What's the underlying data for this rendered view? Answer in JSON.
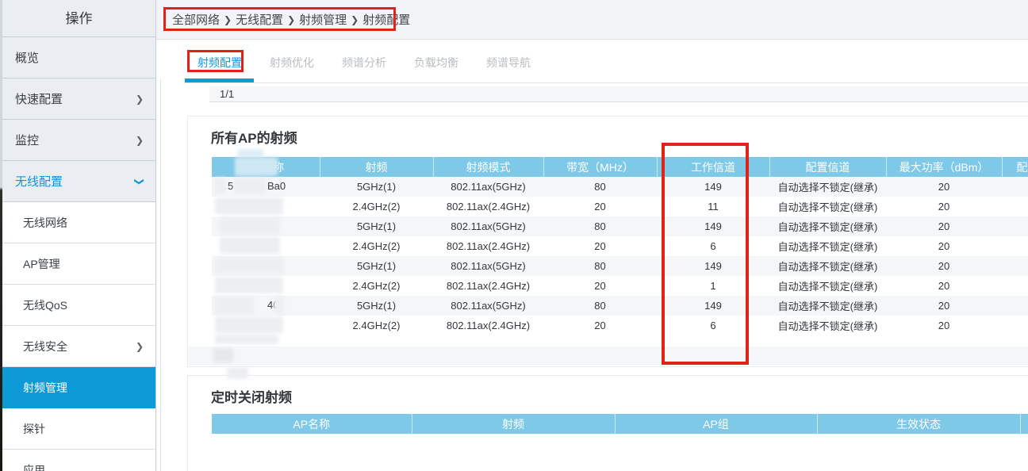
{
  "colors": {
    "accent_blue": "#0e99d7",
    "table_header_blue": "#7ec8e8",
    "tab_active_blue": "#1296db",
    "annotation_red": "#e02318"
  },
  "sidebar": {
    "title": "操作",
    "items": [
      {
        "label": "概览",
        "type": "top"
      },
      {
        "label": "快速配置",
        "type": "top",
        "chevron": "right"
      },
      {
        "label": "监控",
        "type": "top",
        "chevron": "right"
      },
      {
        "label": "无线配置",
        "type": "top",
        "chevron": "down",
        "expanded": true
      },
      {
        "label": "无线网络",
        "type": "sub"
      },
      {
        "label": "AP管理",
        "type": "sub"
      },
      {
        "label": "无线QoS",
        "type": "sub"
      },
      {
        "label": "无线安全",
        "type": "sub",
        "chevron": "right"
      },
      {
        "label": "射频管理",
        "type": "sub",
        "active": true
      },
      {
        "label": "探针",
        "type": "sub"
      },
      {
        "label": "应用",
        "type": "sub"
      }
    ]
  },
  "breadcrumb": {
    "separator": "❯",
    "items": [
      "全部网络",
      "无线配置",
      "射频管理",
      "射频配置"
    ]
  },
  "tabs": [
    {
      "label": "射频配置",
      "active": true
    },
    {
      "label": "射频优化",
      "active": false
    },
    {
      "label": "频谱分析",
      "active": false
    },
    {
      "label": "负载均衡",
      "active": false
    },
    {
      "label": "频谱导航",
      "active": false
    }
  ],
  "pagination": {
    "label": "1/1"
  },
  "panel_all_ap": {
    "title": "所有AP的射频",
    "columns": [
      "AP名称",
      "射频",
      "射频模式",
      "带宽（MHz）",
      "工作信道",
      "配置信道",
      "最大功率（dBm）",
      "配"
    ],
    "rows": [
      {
        "name_fragments": [
          "5",
          "Ba0"
        ],
        "radio": "5GHz(1)",
        "mode": "802.11ax(5GHz)",
        "bandwidth": "80",
        "working_channel": "149",
        "config_channel": "自动选择不锁定(继承)",
        "max_power": "20"
      },
      {
        "name_fragments": [],
        "radio": "2.4GHz(2)",
        "mode": "802.11ax(2.4GHz)",
        "bandwidth": "20",
        "working_channel": "11",
        "config_channel": "自动选择不锁定(继承)",
        "max_power": "20"
      },
      {
        "name_fragments": [],
        "radio": "5GHz(1)",
        "mode": "802.11ax(5GHz)",
        "bandwidth": "80",
        "working_channel": "149",
        "config_channel": "自动选择不锁定(继承)",
        "max_power": "20"
      },
      {
        "name_fragments": [],
        "radio": "2.4GHz(2)",
        "mode": "802.11ax(2.4GHz)",
        "bandwidth": "20",
        "working_channel": "6",
        "config_channel": "自动选择不锁定(继承)",
        "max_power": "20"
      },
      {
        "name_fragments": [],
        "radio": "5GHz(1)",
        "mode": "802.11ax(5GHz)",
        "bandwidth": "80",
        "working_channel": "149",
        "config_channel": "自动选择不锁定(继承)",
        "max_power": "20"
      },
      {
        "name_fragments": [],
        "radio": "2.4GHz(2)",
        "mode": "802.11ax(2.4GHz)",
        "bandwidth": "20",
        "working_channel": "1",
        "config_channel": "自动选择不锁定(继承)",
        "max_power": "20"
      },
      {
        "name_fragments": [
          "",
          "40"
        ],
        "radio": "5GHz(1)",
        "mode": "802.11ax(5GHz)",
        "bandwidth": "80",
        "working_channel": "149",
        "config_channel": "自动选择不锁定(继承)",
        "max_power": "20"
      },
      {
        "name_fragments": [],
        "radio": "2.4GHz(2)",
        "mode": "802.11ax(2.4GHz)",
        "bandwidth": "20",
        "working_channel": "6",
        "config_channel": "自动选择不锁定(继承)",
        "max_power": "20"
      }
    ]
  },
  "panel_timed_off": {
    "title": "定时关闭射频",
    "columns": [
      "AP名称",
      "射频",
      "AP组",
      "生效状态",
      ""
    ]
  }
}
